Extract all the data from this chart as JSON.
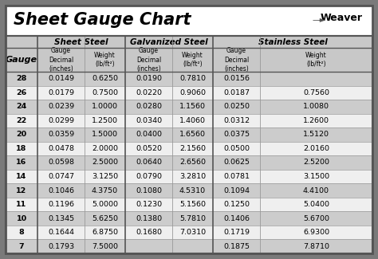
{
  "title": "Sheet Gauge Chart",
  "bg_outer": "#7a7a7a",
  "bg_white": "#ffffff",
  "bg_header_gray": "#c8c8c8",
  "bg_row_dark": "#cccccc",
  "bg_row_light": "#efefef",
  "border_color": "#555555",
  "grid_color": "#999999",
  "gauges": [
    28,
    26,
    24,
    22,
    20,
    18,
    16,
    14,
    12,
    11,
    10,
    8,
    7
  ],
  "sheet_steel": [
    [
      "0.0149",
      "0.6250"
    ],
    [
      "0.0179",
      "0.7500"
    ],
    [
      "0.0239",
      "1.0000"
    ],
    [
      "0.0299",
      "1.2500"
    ],
    [
      "0.0359",
      "1.5000"
    ],
    [
      "0.0478",
      "2.0000"
    ],
    [
      "0.0598",
      "2.5000"
    ],
    [
      "0.0747",
      "3.1250"
    ],
    [
      "0.1046",
      "4.3750"
    ],
    [
      "0.1196",
      "5.0000"
    ],
    [
      "0.1345",
      "5.6250"
    ],
    [
      "0.1644",
      "6.8750"
    ],
    [
      "0.1793",
      "7.5000"
    ]
  ],
  "galvanized_steel": [
    [
      "0.0190",
      "0.7810"
    ],
    [
      "0.0220",
      "0.9060"
    ],
    [
      "0.0280",
      "1.1560"
    ],
    [
      "0.0340",
      "1.4060"
    ],
    [
      "0.0400",
      "1.6560"
    ],
    [
      "0.0520",
      "2.1560"
    ],
    [
      "0.0640",
      "2.6560"
    ],
    [
      "0.0790",
      "3.2810"
    ],
    [
      "0.1080",
      "4.5310"
    ],
    [
      "0.1230",
      "5.1560"
    ],
    [
      "0.1380",
      "5.7810"
    ],
    [
      "0.1680",
      "7.0310"
    ],
    [
      "",
      ""
    ]
  ],
  "stainless_steel": [
    [
      "0.0156",
      ""
    ],
    [
      "0.0187",
      "0.7560"
    ],
    [
      "0.0250",
      "1.0080"
    ],
    [
      "0.0312",
      "1.2600"
    ],
    [
      "0.0375",
      "1.5120"
    ],
    [
      "0.0500",
      "2.0160"
    ],
    [
      "0.0625",
      "2.5200"
    ],
    [
      "0.0781",
      "3.1500"
    ],
    [
      "0.1094",
      "4.4100"
    ],
    [
      "0.1250",
      "5.0400"
    ],
    [
      "0.1406",
      "5.6700"
    ],
    [
      "0.1719",
      "6.9300"
    ],
    [
      "0.1875",
      "7.8710"
    ]
  ],
  "figsize": [
    4.74,
    3.25
  ],
  "dpi": 100
}
